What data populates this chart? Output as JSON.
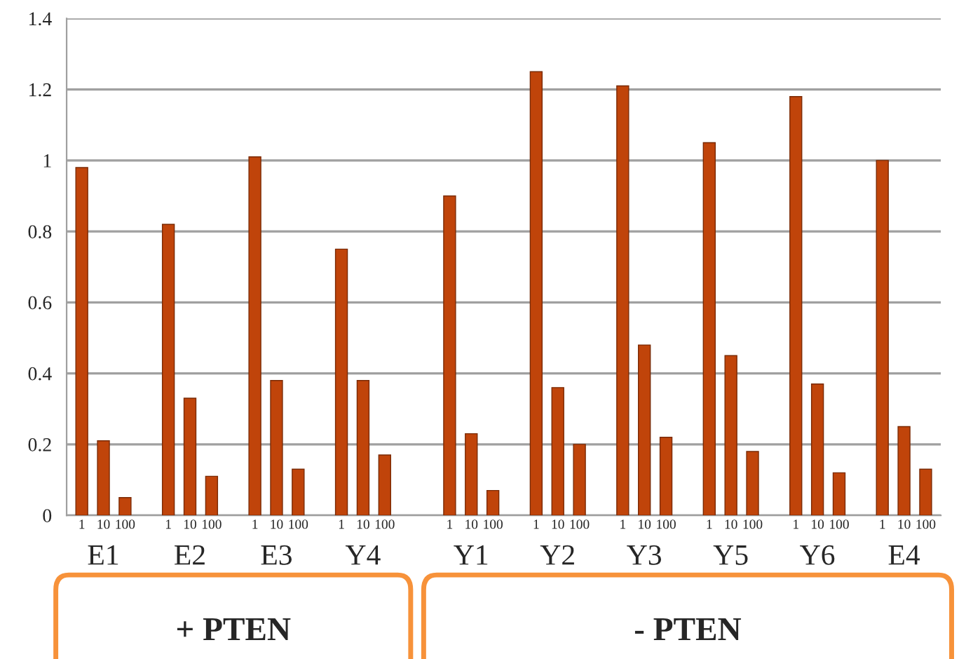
{
  "chart_data": {
    "type": "bar",
    "categories": [
      "1",
      "10",
      "100",
      null,
      "1",
      "10",
      "100",
      null,
      "1",
      "10",
      "100",
      null,
      "1",
      "10",
      "100",
      null,
      null,
      "1",
      "10",
      "100",
      null,
      "1",
      "10",
      "100",
      null,
      "1",
      "10",
      "100",
      null,
      "1",
      "10",
      "100",
      null,
      "1",
      "10",
      "100",
      null,
      "1",
      "10",
      "100"
    ],
    "values": [
      0.98,
      0.21,
      0.05,
      null,
      0.82,
      0.33,
      0.11,
      null,
      1.01,
      0.38,
      0.13,
      null,
      0.75,
      0.38,
      0.17,
      null,
      null,
      0.9,
      0.23,
      0.07,
      null,
      1.25,
      0.36,
      0.2,
      null,
      1.21,
      0.48,
      0.22,
      null,
      1.05,
      0.45,
      0.18,
      null,
      1.18,
      0.37,
      0.12,
      null,
      1.0,
      0.25,
      0.13
    ],
    "color": "#c0440a",
    "ylim": [
      0,
      1.4
    ],
    "yticks": [
      0,
      0.2,
      0.4,
      0.6,
      0.8,
      1,
      1.2,
      1.4
    ],
    "grid": "y",
    "annotations": [
      "E1",
      "E2",
      "E3",
      "Y4",
      "Y1",
      "Y2",
      "Y3",
      "Y5",
      "Y6",
      "E4",
      "+ PTEN",
      "- PTEN"
    ]
  }
}
